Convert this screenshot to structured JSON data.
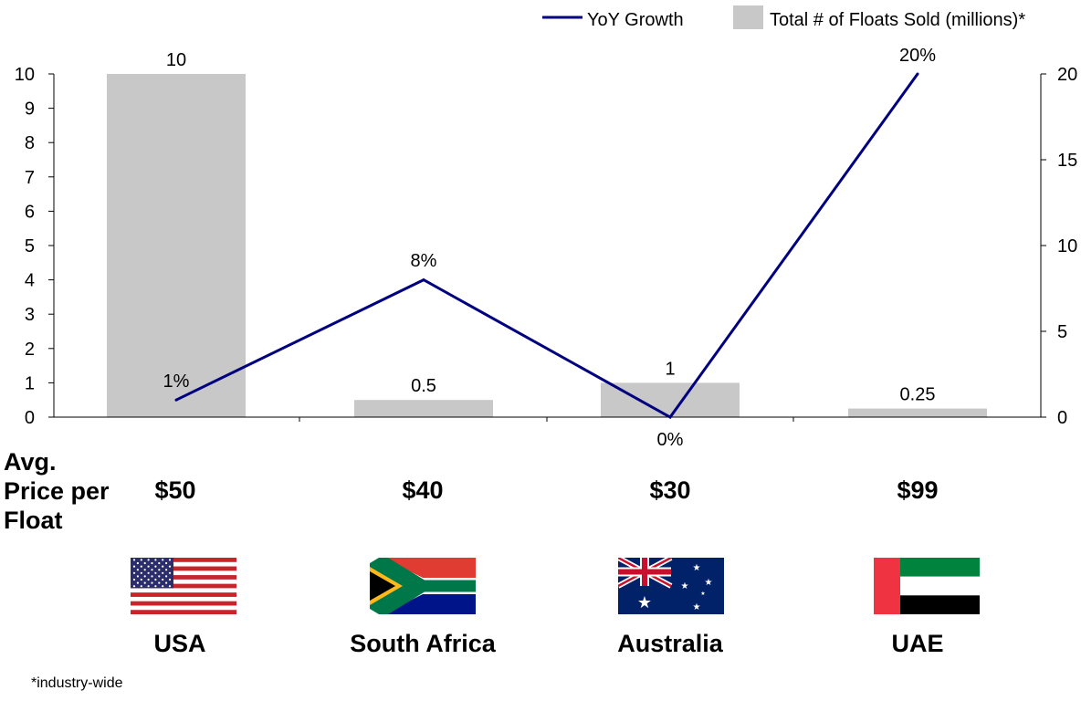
{
  "legend": {
    "line_label": "YoY Growth",
    "bar_label": "Total # of Floats Sold (millions)*"
  },
  "price_header": "Avg.\nPrice per\nFloat",
  "footnote": "*industry-wide",
  "colors": {
    "bar": "#c8c8c8",
    "line": "#000080"
  },
  "countries": [
    {
      "name": "USA",
      "price": "$50",
      "flag": "usa-flag"
    },
    {
      "name": "South Africa",
      "price": "$40",
      "flag": "south-africa-flag"
    },
    {
      "name": "Australia",
      "price": "$30",
      "flag": "australia-flag"
    },
    {
      "name": "UAE",
      "price": "$99",
      "flag": "uae-flag"
    }
  ],
  "chart_data": {
    "type": "bar",
    "categories": [
      "USA",
      "South Africa",
      "Australia",
      "UAE"
    ],
    "series": [
      {
        "name": "Total # of Floats Sold (millions)*",
        "type": "bar",
        "axis": "left",
        "values": [
          10,
          0.5,
          1,
          0.25
        ],
        "labels": [
          "10",
          "0.5",
          "1",
          "0.25"
        ]
      },
      {
        "name": "YoY Growth",
        "type": "line",
        "axis": "right",
        "values": [
          1,
          8,
          0,
          20
        ],
        "labels": [
          "1%",
          "8%",
          "0%",
          "20%"
        ]
      }
    ],
    "left_axis": {
      "min": 0,
      "max": 10,
      "ticks": [
        0,
        1,
        2,
        3,
        4,
        5,
        6,
        7,
        8,
        9,
        10
      ]
    },
    "right_axis": {
      "min": 0,
      "max": 20,
      "ticks": [
        0,
        5,
        10,
        15,
        20
      ]
    },
    "legend_position": "top-right",
    "grid": false
  }
}
